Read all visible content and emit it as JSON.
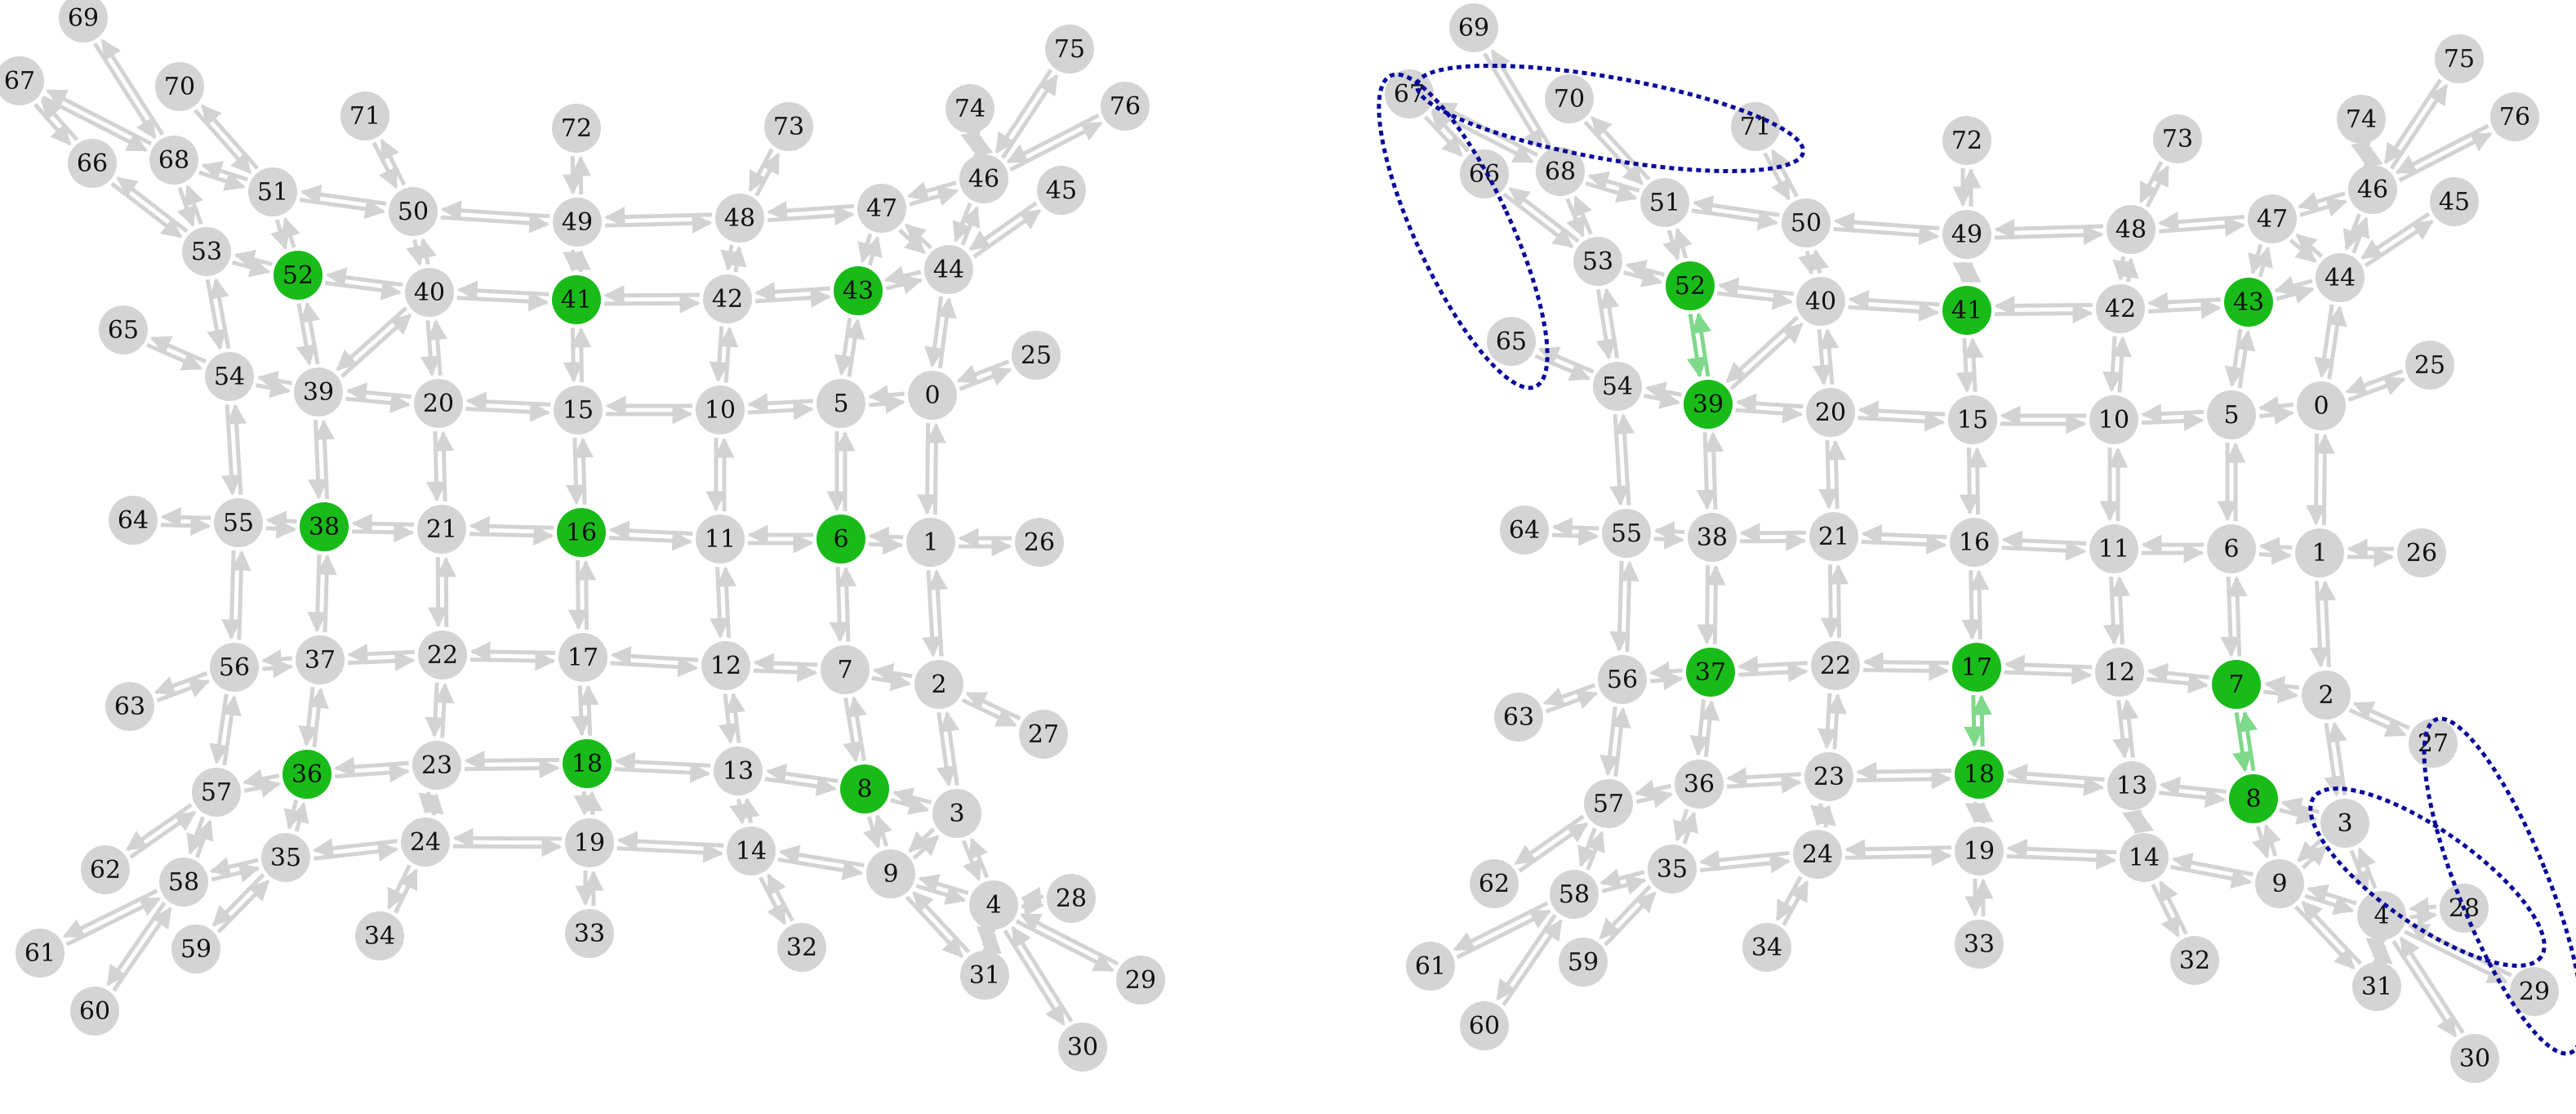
{
  "colors": {
    "node_default": "#d4d4d4",
    "node_active": "#19bb19",
    "edge_default": "#d3d3d3",
    "edge_active": "#7fd98a",
    "highlight_ellipse": "#08089a"
  },
  "panels": [
    {
      "id": "left",
      "nodes": [
        {
          "id": "0",
          "label": "0",
          "active": false
        },
        {
          "id": "1",
          "label": "1",
          "active": false
        },
        {
          "id": "2",
          "label": "2",
          "active": false
        },
        {
          "id": "3",
          "label": "3",
          "active": false
        },
        {
          "id": "4",
          "label": "4",
          "active": false
        },
        {
          "id": "5",
          "label": "5",
          "active": false
        },
        {
          "id": "6",
          "label": "6",
          "active": true
        },
        {
          "id": "7",
          "label": "7",
          "active": false
        },
        {
          "id": "8",
          "label": "8",
          "active": true
        },
        {
          "id": "9",
          "label": "9",
          "active": false
        },
        {
          "id": "10",
          "label": "10",
          "active": false
        },
        {
          "id": "11",
          "label": "11",
          "active": false
        },
        {
          "id": "12",
          "label": "12",
          "active": false
        },
        {
          "id": "13",
          "label": "13",
          "active": false
        },
        {
          "id": "14",
          "label": "14",
          "active": false
        },
        {
          "id": "15",
          "label": "15",
          "active": false
        },
        {
          "id": "16",
          "label": "16",
          "active": true
        },
        {
          "id": "17",
          "label": "17",
          "active": false
        },
        {
          "id": "18",
          "label": "18",
          "active": true
        },
        {
          "id": "19",
          "label": "19",
          "active": false
        },
        {
          "id": "20",
          "label": "20",
          "active": false
        },
        {
          "id": "21",
          "label": "21",
          "active": false
        },
        {
          "id": "22",
          "label": "22",
          "active": false
        },
        {
          "id": "23",
          "label": "23",
          "active": false
        },
        {
          "id": "24",
          "label": "24",
          "active": false
        },
        {
          "id": "25",
          "label": "25",
          "active": false
        },
        {
          "id": "26",
          "label": "26",
          "active": false
        },
        {
          "id": "27",
          "label": "27",
          "active": false
        },
        {
          "id": "28",
          "label": "28",
          "active": false
        },
        {
          "id": "29",
          "label": "29",
          "active": false
        },
        {
          "id": "30",
          "label": "30",
          "active": false
        },
        {
          "id": "31",
          "label": "31",
          "active": false
        },
        {
          "id": "32",
          "label": "32",
          "active": false
        },
        {
          "id": "33",
          "label": "33",
          "active": false
        },
        {
          "id": "34",
          "label": "34",
          "active": false
        },
        {
          "id": "35",
          "label": "35",
          "active": false
        },
        {
          "id": "36",
          "label": "36",
          "active": true
        },
        {
          "id": "37",
          "label": "37",
          "active": false
        },
        {
          "id": "38",
          "label": "38",
          "active": true
        },
        {
          "id": "39",
          "label": "39",
          "active": false
        },
        {
          "id": "40",
          "label": "40",
          "active": false
        },
        {
          "id": "41",
          "label": "41",
          "active": true
        },
        {
          "id": "42",
          "label": "42",
          "active": false
        },
        {
          "id": "43",
          "label": "43",
          "active": true
        },
        {
          "id": "44",
          "label": "44",
          "active": false
        },
        {
          "id": "45",
          "label": "45",
          "active": false
        },
        {
          "id": "46",
          "label": "46",
          "active": false
        },
        {
          "id": "47",
          "label": "47",
          "active": false
        },
        {
          "id": "48",
          "label": "48",
          "active": false
        },
        {
          "id": "49",
          "label": "49",
          "active": false
        },
        {
          "id": "50",
          "label": "50",
          "active": false
        },
        {
          "id": "51",
          "label": "51",
          "active": false
        },
        {
          "id": "52",
          "label": "52",
          "active": true
        },
        {
          "id": "53",
          "label": "53",
          "active": false
        },
        {
          "id": "54",
          "label": "54",
          "active": false
        },
        {
          "id": "55",
          "label": "55",
          "active": false
        },
        {
          "id": "56",
          "label": "56",
          "active": false
        },
        {
          "id": "57",
          "label": "57",
          "active": false
        },
        {
          "id": "58",
          "label": "58",
          "active": false
        },
        {
          "id": "59",
          "label": "59",
          "active": false
        },
        {
          "id": "60",
          "label": "60",
          "active": false
        },
        {
          "id": "61",
          "label": "61",
          "active": false
        },
        {
          "id": "62",
          "label": "62",
          "active": false
        },
        {
          "id": "63",
          "label": "63",
          "active": false
        },
        {
          "id": "64",
          "label": "64",
          "active": false
        },
        {
          "id": "65",
          "label": "65",
          "active": false
        },
        {
          "id": "66",
          "label": "66",
          "active": false
        },
        {
          "id": "67",
          "label": "67",
          "active": false
        },
        {
          "id": "68",
          "label": "68",
          "active": false
        },
        {
          "id": "69",
          "label": "69",
          "active": false
        },
        {
          "id": "70",
          "label": "70",
          "active": false
        },
        {
          "id": "71",
          "label": "71",
          "active": false
        },
        {
          "id": "72",
          "label": "72",
          "active": false
        },
        {
          "id": "73",
          "label": "73",
          "active": false
        },
        {
          "id": "74",
          "label": "74",
          "active": false
        },
        {
          "id": "75",
          "label": "75",
          "active": false
        },
        {
          "id": "76",
          "label": "76",
          "active": false
        }
      ]
    },
    {
      "id": "right",
      "nodes": [
        {
          "id": "0",
          "label": "0",
          "active": false
        },
        {
          "id": "1",
          "label": "1",
          "active": false
        },
        {
          "id": "2",
          "label": "2",
          "active": false
        },
        {
          "id": "3",
          "label": "3",
          "active": false
        },
        {
          "id": "4",
          "label": "4",
          "active": false
        },
        {
          "id": "5",
          "label": "5",
          "active": false
        },
        {
          "id": "6",
          "label": "6",
          "active": false
        },
        {
          "id": "7",
          "label": "7",
          "active": true
        },
        {
          "id": "8",
          "label": "8",
          "active": true
        },
        {
          "id": "9",
          "label": "9",
          "active": false
        },
        {
          "id": "10",
          "label": "10",
          "active": false
        },
        {
          "id": "11",
          "label": "11",
          "active": false
        },
        {
          "id": "12",
          "label": "12",
          "active": false
        },
        {
          "id": "13",
          "label": "13",
          "active": false
        },
        {
          "id": "14",
          "label": "14",
          "active": false
        },
        {
          "id": "15",
          "label": "15",
          "active": false
        },
        {
          "id": "16",
          "label": "16",
          "active": false
        },
        {
          "id": "17",
          "label": "17",
          "active": true
        },
        {
          "id": "18",
          "label": "18",
          "active": true
        },
        {
          "id": "19",
          "label": "19",
          "active": false
        },
        {
          "id": "20",
          "label": "20",
          "active": false
        },
        {
          "id": "21",
          "label": "21",
          "active": false
        },
        {
          "id": "22",
          "label": "22",
          "active": false
        },
        {
          "id": "23",
          "label": "23",
          "active": false
        },
        {
          "id": "24",
          "label": "24",
          "active": false
        },
        {
          "id": "25",
          "label": "25",
          "active": false
        },
        {
          "id": "26",
          "label": "26",
          "active": false
        },
        {
          "id": "27",
          "label": "27",
          "active": false
        },
        {
          "id": "28",
          "label": "28",
          "active": false
        },
        {
          "id": "29",
          "label": "29",
          "active": false
        },
        {
          "id": "30",
          "label": "30",
          "active": false
        },
        {
          "id": "31",
          "label": "31",
          "active": false
        },
        {
          "id": "32",
          "label": "32",
          "active": false
        },
        {
          "id": "33",
          "label": "33",
          "active": false
        },
        {
          "id": "34",
          "label": "34",
          "active": false
        },
        {
          "id": "35",
          "label": "35",
          "active": false
        },
        {
          "id": "36",
          "label": "36",
          "active": false
        },
        {
          "id": "37",
          "label": "37",
          "active": true
        },
        {
          "id": "38",
          "label": "38",
          "active": false
        },
        {
          "id": "39",
          "label": "39",
          "active": true
        },
        {
          "id": "40",
          "label": "40",
          "active": false
        },
        {
          "id": "41",
          "label": "41",
          "active": true
        },
        {
          "id": "42",
          "label": "42",
          "active": false
        },
        {
          "id": "43",
          "label": "43",
          "active": true
        },
        {
          "id": "44",
          "label": "44",
          "active": false
        },
        {
          "id": "45",
          "label": "45",
          "active": false
        },
        {
          "id": "46",
          "label": "46",
          "active": false
        },
        {
          "id": "47",
          "label": "47",
          "active": false
        },
        {
          "id": "48",
          "label": "48",
          "active": false
        },
        {
          "id": "49",
          "label": "49",
          "active": false
        },
        {
          "id": "50",
          "label": "50",
          "active": false
        },
        {
          "id": "51",
          "label": "51",
          "active": false
        },
        {
          "id": "52",
          "label": "52",
          "active": true
        },
        {
          "id": "53",
          "label": "53",
          "active": false
        },
        {
          "id": "54",
          "label": "54",
          "active": false
        },
        {
          "id": "55",
          "label": "55",
          "active": false
        },
        {
          "id": "56",
          "label": "56",
          "active": false
        },
        {
          "id": "57",
          "label": "57",
          "active": false
        },
        {
          "id": "58",
          "label": "58",
          "active": false
        },
        {
          "id": "59",
          "label": "59",
          "active": false
        },
        {
          "id": "60",
          "label": "60",
          "active": false
        },
        {
          "id": "61",
          "label": "61",
          "active": false
        },
        {
          "id": "62",
          "label": "62",
          "active": false
        },
        {
          "id": "63",
          "label": "63",
          "active": false
        },
        {
          "id": "64",
          "label": "64",
          "active": false
        },
        {
          "id": "65",
          "label": "65",
          "active": false
        },
        {
          "id": "66",
          "label": "66",
          "active": false
        },
        {
          "id": "67",
          "label": "67",
          "active": false
        },
        {
          "id": "68",
          "label": "68",
          "active": false
        },
        {
          "id": "69",
          "label": "69",
          "active": false
        },
        {
          "id": "70",
          "label": "70",
          "active": false
        },
        {
          "id": "71",
          "label": "71",
          "active": false
        },
        {
          "id": "72",
          "label": "72",
          "active": false
        },
        {
          "id": "73",
          "label": "73",
          "active": false
        },
        {
          "id": "74",
          "label": "74",
          "active": false
        },
        {
          "id": "75",
          "label": "75",
          "active": false
        },
        {
          "id": "76",
          "label": "76",
          "active": false
        }
      ]
    }
  ],
  "edges": [
    [
      "0",
      "1"
    ],
    [
      "0",
      "5"
    ],
    [
      "0",
      "25"
    ],
    [
      "0",
      "44"
    ],
    [
      "1",
      "2"
    ],
    [
      "1",
      "6"
    ],
    [
      "1",
      "26"
    ],
    [
      "2",
      "3"
    ],
    [
      "2",
      "7"
    ],
    [
      "2",
      "27"
    ],
    [
      "3",
      "4"
    ],
    [
      "3",
      "8"
    ],
    [
      "3",
      "9"
    ],
    [
      "4",
      "9"
    ],
    [
      "4",
      "28"
    ],
    [
      "4",
      "29"
    ],
    [
      "4",
      "30"
    ],
    [
      "4",
      "31"
    ],
    [
      "5",
      "6"
    ],
    [
      "5",
      "10"
    ],
    [
      "5",
      "43"
    ],
    [
      "6",
      "7"
    ],
    [
      "6",
      "11"
    ],
    [
      "7",
      "8"
    ],
    [
      "7",
      "12"
    ],
    [
      "8",
      "9"
    ],
    [
      "8",
      "13"
    ],
    [
      "9",
      "14"
    ],
    [
      "9",
      "31"
    ],
    [
      "10",
      "11"
    ],
    [
      "10",
      "15"
    ],
    [
      "10",
      "42"
    ],
    [
      "11",
      "12"
    ],
    [
      "11",
      "16"
    ],
    [
      "12",
      "13"
    ],
    [
      "12",
      "17"
    ],
    [
      "13",
      "14"
    ],
    [
      "13",
      "18"
    ],
    [
      "14",
      "19"
    ],
    [
      "14",
      "32"
    ],
    [
      "15",
      "16"
    ],
    [
      "15",
      "20"
    ],
    [
      "15",
      "41"
    ],
    [
      "16",
      "17"
    ],
    [
      "16",
      "21"
    ],
    [
      "17",
      "18"
    ],
    [
      "17",
      "22"
    ],
    [
      "18",
      "19"
    ],
    [
      "18",
      "23"
    ],
    [
      "19",
      "24"
    ],
    [
      "19",
      "33"
    ],
    [
      "20",
      "21"
    ],
    [
      "20",
      "39"
    ],
    [
      "20",
      "40"
    ],
    [
      "21",
      "22"
    ],
    [
      "21",
      "38"
    ],
    [
      "22",
      "23"
    ],
    [
      "22",
      "37"
    ],
    [
      "23",
      "24"
    ],
    [
      "23",
      "36"
    ],
    [
      "24",
      "35"
    ],
    [
      "24",
      "34"
    ],
    [
      "35",
      "36"
    ],
    [
      "35",
      "58"
    ],
    [
      "35",
      "59"
    ],
    [
      "36",
      "37"
    ],
    [
      "36",
      "57"
    ],
    [
      "37",
      "38"
    ],
    [
      "37",
      "56"
    ],
    [
      "38",
      "39"
    ],
    [
      "38",
      "55"
    ],
    [
      "39",
      "40"
    ],
    [
      "39",
      "52"
    ],
    [
      "39",
      "54"
    ],
    [
      "40",
      "41"
    ],
    [
      "40",
      "50"
    ],
    [
      "40",
      "52"
    ],
    [
      "41",
      "42"
    ],
    [
      "41",
      "49"
    ],
    [
      "42",
      "43"
    ],
    [
      "42",
      "48"
    ],
    [
      "43",
      "44"
    ],
    [
      "43",
      "47"
    ],
    [
      "44",
      "45"
    ],
    [
      "44",
      "46"
    ],
    [
      "44",
      "47"
    ],
    [
      "46",
      "47"
    ],
    [
      "46",
      "74"
    ],
    [
      "46",
      "75"
    ],
    [
      "46",
      "76"
    ],
    [
      "47",
      "48"
    ],
    [
      "48",
      "49"
    ],
    [
      "48",
      "73"
    ],
    [
      "49",
      "50"
    ],
    [
      "49",
      "72"
    ],
    [
      "50",
      "51"
    ],
    [
      "50",
      "71"
    ],
    [
      "51",
      "52"
    ],
    [
      "51",
      "68"
    ],
    [
      "51",
      "70"
    ],
    [
      "52",
      "53"
    ],
    [
      "53",
      "54"
    ],
    [
      "53",
      "66"
    ],
    [
      "53",
      "68"
    ],
    [
      "54",
      "55"
    ],
    [
      "54",
      "65"
    ],
    [
      "55",
      "56"
    ],
    [
      "55",
      "64"
    ],
    [
      "56",
      "57"
    ],
    [
      "56",
      "63"
    ],
    [
      "57",
      "58"
    ],
    [
      "57",
      "62"
    ],
    [
      "58",
      "60"
    ],
    [
      "58",
      "61"
    ],
    [
      "66",
      "67"
    ],
    [
      "68",
      "69"
    ],
    [
      "68",
      "67"
    ]
  ]
}
